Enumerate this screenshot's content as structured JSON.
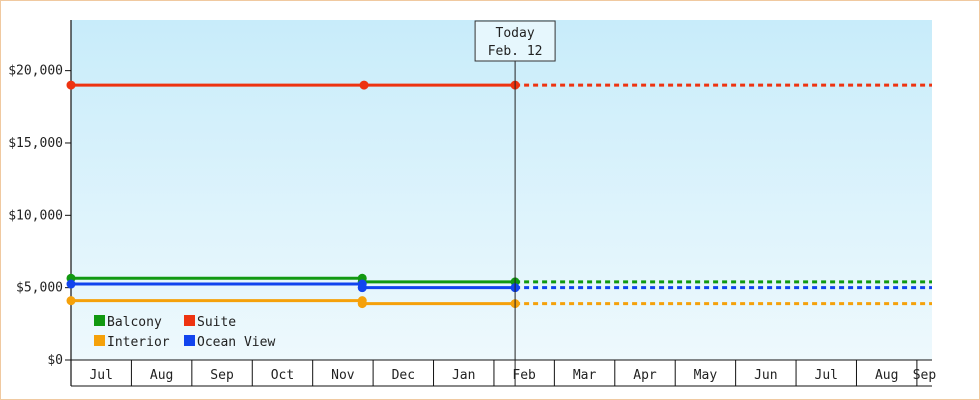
{
  "chart_data": {
    "type": "line",
    "title": "",
    "xlabel": "",
    "ylabel": "",
    "ylim": [
      0,
      23500
    ],
    "y_ticks": [
      {
        "value": 0,
        "label": "$0"
      },
      {
        "value": 5000,
        "label": "$5,000"
      },
      {
        "value": 10000,
        "label": "$10,000"
      },
      {
        "value": 15000,
        "label": "$15,000"
      },
      {
        "value": 20000,
        "label": "$20,000"
      }
    ],
    "months": [
      "Jul",
      "Aug",
      "Sep",
      "Oct",
      "Nov",
      "Dec",
      "Jan",
      "Feb",
      "Mar",
      "Apr",
      "May",
      "Jun",
      "Jul",
      "Aug",
      "Sep"
    ],
    "x_start_month": 0,
    "x_end_month": 14.25,
    "today": {
      "label": "Today",
      "date": "Feb. 12",
      "month": 7.35
    },
    "background_gradient": [
      "#c8ecfa",
      "#eef9fd"
    ],
    "legend": {
      "placement": "bottom-left"
    },
    "series": [
      {
        "name": "Balcony",
        "color": "#119911",
        "points": [
          {
            "month": 0,
            "value": 5650
          },
          {
            "month": 4.82,
            "value": 5650
          },
          {
            "month": 4.82,
            "value": 5400
          },
          {
            "month": 7.35,
            "value": 5400
          }
        ],
        "projected_to": 14.25
      },
      {
        "name": "Suite",
        "color": "#ee3311",
        "points": [
          {
            "month": 0,
            "value": 19000
          },
          {
            "month": 4.85,
            "value": 19000
          },
          {
            "month": 7.35,
            "value": 19000
          }
        ],
        "projected_to": 14.25
      },
      {
        "name": "Interior",
        "color": "#f5a10a",
        "points": [
          {
            "month": 0,
            "value": 4100
          },
          {
            "month": 4.82,
            "value": 4100
          },
          {
            "month": 4.82,
            "value": 3900
          },
          {
            "month": 7.35,
            "value": 3900
          }
        ],
        "projected_to": 14.25
      },
      {
        "name": "Ocean View",
        "color": "#1144ee",
        "points": [
          {
            "month": 0,
            "value": 5250
          },
          {
            "month": 4.82,
            "value": 5250
          },
          {
            "month": 4.82,
            "value": 5000
          },
          {
            "month": 7.35,
            "value": 5000
          }
        ],
        "projected_to": 14.25
      }
    ]
  }
}
